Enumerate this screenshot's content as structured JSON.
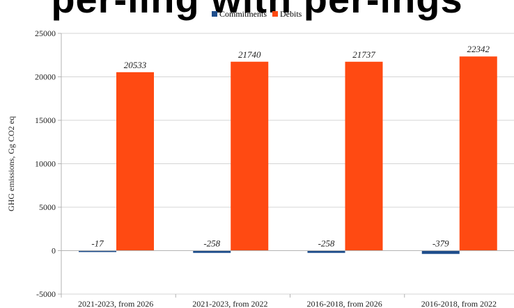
{
  "chart_data": {
    "type": "bar",
    "title": "per-ling with per-ings",
    "ylabel": "GHG emissions, Gg CO2 eq",
    "xlabel": "",
    "categories": [
      "2021-2023, from 2026",
      "2021-2023, from 2022",
      "2016-2018, from 2026",
      "2016-2018, from 2022"
    ],
    "series": [
      {
        "name": "Commitments",
        "values": [
          -17,
          -258,
          -258,
          -379
        ],
        "labels": [
          "-17",
          "-258",
          "-258",
          "-379"
        ],
        "color": "#1f4e8c"
      },
      {
        "name": "Debits",
        "values": [
          20533,
          21740,
          21737,
          22342
        ],
        "labels": [
          "20533",
          "21740",
          "21737",
          "22342"
        ],
        "color": "#ff4a12"
      }
    ],
    "ylim": [
      -5000,
      25000
    ],
    "yticks": [
      -5000,
      0,
      5000,
      10000,
      15000,
      20000,
      25000
    ],
    "ytick_labels": [
      "-5000",
      "0",
      "5000",
      "10000",
      "15000",
      "20000",
      "25000"
    ],
    "grid": true,
    "legend_position": "top"
  }
}
